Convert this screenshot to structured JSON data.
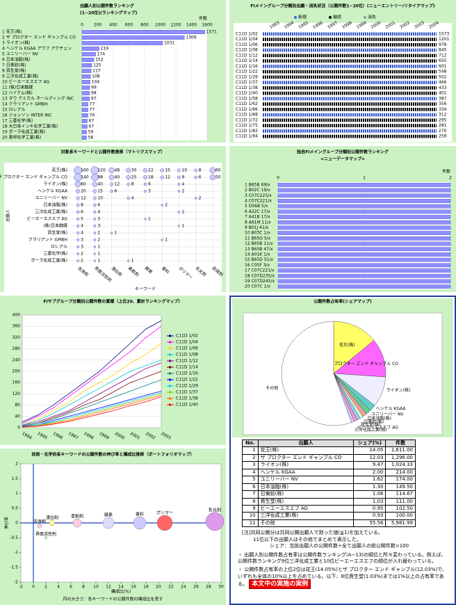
{
  "chart_data": [
    {
      "type": "hbar",
      "title": "出願人別公開件数ランキング",
      "subtitle": "(1−20位)(ランキングマップ)",
      "unit": "件数",
      "show_values": true,
      "color": "#8f8fff",
      "categories": [
        "1 花王(株)",
        "2 ザ プロクター エンド ギャンブル CO",
        "3 ライオン(株)",
        "4 ヘンケル KGAA アウフ アクチェン",
        "5 ユニリーバー NV",
        "6 日本油脂(株)",
        "7 日東紡(株)",
        "8 資生堂(株)",
        "9 三洋化成工業(株)",
        "10 ビーエーエスエフ AG",
        "11 (株)日本触媒",
        "12 ハイケム(株)",
        "13 ダウ ケミカル ホールディング INC",
        "14 クラリアント GMBH",
        "15 ロレアル",
        "16 ジョンソン INTER INC",
        "17 三菱化学(株)",
        "18 大日本インキ化学工業(株)",
        "19 ポーラ化成工業(株)",
        "20 東邦化学工業(株)"
      ],
      "values": [
        1571,
        1309,
        1031,
        219,
        174,
        152,
        125,
        117,
        108,
        104,
        99,
        98,
        97,
        77,
        77,
        76,
        67,
        67,
        59,
        58
      ],
      "xlim": [
        0,
        1600
      ],
      "xticks": [
        0,
        200,
        400,
        600,
        800,
        1000,
        1200,
        1400,
        1600
      ]
    },
    {
      "type": "entrymap",
      "title": "FIメイングループ分類別出願・消失状況（公開件数1−20位）(ニューエントリー/リタイアマップ)",
      "legend": [
        "新規",
        "継続",
        "消失"
      ],
      "legend_colors": [
        "#3366ff",
        "#000000",
        "#999999"
      ],
      "x": [
        "1993",
        "1994",
        "1995",
        "1996",
        "1997",
        "1998",
        "1999",
        "2000",
        "2001",
        "2002",
        "2003",
        "2004"
      ],
      "categories": [
        "C11D 1/02",
        "C11D 1/04",
        "C11D 1/06",
        "C11D 1/08",
        "C11D 1/12",
        "C11D 1/14",
        "C11D 1/16",
        "C11D 1/22",
        "C11D 1/29",
        "C11D 1/37",
        "C11D 1/38",
        "C11D 1/40",
        "C11D 1/58",
        "C11D 1/62",
        "C11D 1/66",
        "C11D 1/68",
        "C11D 1/72",
        "C11D 1/75",
        "C11D 1/83",
        "C11D 1/94"
      ],
      "values": [
        1573,
        1201,
        978,
        845,
        712,
        655,
        601,
        548,
        502,
        466,
        433,
        401,
        387,
        356,
        334,
        312,
        295,
        281,
        270,
        259
      ]
    },
    {
      "type": "bubblematrix",
      "title": "対象系キーワードと公開件数推移（マトリクスマップ）",
      "xlabel": "キーワード",
      "ylabel": "出願人",
      "color": "#ccccff",
      "columns": [
        "洗浄剤",
        "界面活性剤",
        "漂白剤",
        "柔軟剤",
        "酵素",
        "香料",
        "ポリマー",
        "乳化剤",
        "防腐剤"
      ],
      "categories": [
        "花王(株)",
        "ザ プロクター エンド ギャンブル CO",
        "ライオン(株)",
        "ヘンケル KGAA",
        "ユニリーバー NV",
        "日本油脂(株)",
        "三洋化成工業(株)",
        "ビーエーエスエフ AG",
        "(株)日本触媒",
        "資生堂(株)",
        "クラリアント GMBH",
        "ロレアル",
        "三菱化学(株)",
        "ポーラ化成工業(株)"
      ],
      "values": [
        [
          160,
          120,
          48,
          30,
          22,
          15,
          10,
          8,
          60
        ],
        [
          140,
          98,
          40,
          25,
          18,
          12,
          9,
          6,
          50
        ],
        [
          60,
          40,
          12,
          8,
          6,
          0,
          4,
          0,
          0
        ],
        [
          20,
          15,
          6,
          0,
          3,
          0,
          2,
          0,
          0
        ],
        [
          12,
          10,
          0,
          4,
          0,
          0,
          0,
          2,
          0
        ],
        [
          8,
          6,
          0,
          0,
          0,
          2,
          0,
          0,
          0
        ],
        [
          6,
          4,
          0,
          0,
          0,
          0,
          2,
          0,
          0
        ],
        [
          5,
          3,
          0,
          0,
          1,
          0,
          0,
          0,
          0
        ],
        [
          4,
          3,
          0,
          0,
          0,
          0,
          1,
          0,
          0
        ],
        [
          4,
          2,
          1,
          0,
          0,
          0,
          0,
          0,
          0
        ],
        [
          3,
          2,
          0,
          0,
          0,
          1,
          0,
          0,
          0
        ],
        [
          3,
          1,
          0,
          0,
          0,
          0,
          0,
          0,
          0
        ],
        [
          2,
          1,
          0,
          0,
          0,
          0,
          0,
          0,
          0
        ],
        [
          2,
          1,
          0,
          1,
          0,
          0,
          0,
          0,
          0
        ]
      ]
    },
    {
      "type": "hbar",
      "title": "独自FIメイングループ分類別公開件数ランキング",
      "subtitle": "<ニューデータマップ>",
      "unit": "件数",
      "show_values": false,
      "color": "#8f8fff",
      "categories": [
        "1 B65B 69/x",
        "2 B02C 19/x",
        "3 C07C225/x",
        "4 C07C221/x",
        "5 D06B 5/x",
        "6 A22C 17/x",
        "7 A41B 17/x",
        "8 A61M 11/x",
        "9 B01J 41/x",
        "10 B03C 1/x",
        "11 B65G 5/x",
        "12 B65B 11/x",
        "13 B65B 47/x",
        "14 A01K 1/x",
        "15 B65D 51/x",
        "16 C05F 3/x",
        "17 C07C221/x",
        "18 C07D235/x",
        "19 C07D245/x",
        "20 C07C 1/x"
      ],
      "values": [
        2,
        2,
        2,
        2,
        2,
        2,
        2,
        2,
        2,
        2,
        2,
        2,
        2,
        2,
        2,
        2,
        2,
        2,
        2,
        2
      ],
      "xlim": [
        0,
        2
      ],
      "xticks": [
        0,
        1,
        2
      ]
    },
    {
      "type": "line",
      "title": "FIサブグループ分類別公開件数の累積（上位20、累計ランキングマップ）",
      "x": [
        "1994",
        "1995",
        "1996",
        "1997",
        "1998",
        "1999",
        "2000",
        "2001",
        "2002",
        "2003"
      ],
      "ylim": [
        0,
        400
      ],
      "yticks": [
        0,
        40,
        80,
        120,
        160,
        200,
        240,
        280,
        320,
        360,
        400
      ],
      "series": [
        {
          "name": "C11D 1/02",
          "color": "#000080",
          "values": [
            20,
            45,
            80,
            120,
            160,
            200,
            250,
            300,
            350,
            380
          ]
        },
        {
          "name": "C11D 1/04",
          "color": "#ff00ff",
          "values": [
            15,
            40,
            70,
            110,
            150,
            190,
            230,
            270,
            320,
            360
          ]
        },
        {
          "name": "C11D 1/06",
          "color": "#ffcc00",
          "values": [
            10,
            30,
            60,
            90,
            130,
            160,
            190,
            230,
            260,
            300
          ]
        },
        {
          "name": "C11D 1/08",
          "color": "#00cccc",
          "values": [
            10,
            25,
            50,
            80,
            110,
            140,
            170,
            200,
            220,
            240
          ]
        },
        {
          "name": "C11D 1/12",
          "color": "#800080",
          "values": [
            8,
            20,
            40,
            60,
            90,
            120,
            150,
            180,
            210,
            230
          ]
        },
        {
          "name": "C11D 1/14",
          "color": "#800000",
          "values": [
            5,
            15,
            35,
            55,
            80,
            100,
            130,
            160,
            180,
            200
          ]
        },
        {
          "name": "C11D 1/16",
          "color": "#008080",
          "values": [
            5,
            15,
            30,
            50,
            70,
            90,
            110,
            130,
            150,
            170
          ]
        },
        {
          "name": "C11D 1/22",
          "color": "#0000ff",
          "values": [
            5,
            10,
            25,
            40,
            55,
            70,
            85,
            100,
            115,
            130
          ]
        },
        {
          "name": "C11D 1/29",
          "color": "#00ccff",
          "values": [
            3,
            10,
            20,
            35,
            50,
            65,
            80,
            95,
            110,
            125
          ]
        },
        {
          "name": "C11D 1/37",
          "color": "#99cc00",
          "values": [
            3,
            8,
            18,
            30,
            45,
            60,
            75,
            90,
            105,
            120
          ]
        },
        {
          "name": "C11D 1/38",
          "color": "#ff6600",
          "values": [
            2,
            6,
            15,
            25,
            40,
            55,
            70,
            85,
            100,
            115
          ]
        },
        {
          "name": "C11D 1/40",
          "color": "#ff0000",
          "values": [
            2,
            5,
            12,
            22,
            35,
            48,
            62,
            78,
            92,
            110
          ]
        }
      ]
    },
    {
      "type": "bubble",
      "title": "技術・化学的系キーワードの公開件数の伸び率と構成比推移（ポートフォリオマップ）",
      "xlabel": "構成比(%)",
      "ylabel": "伸び率",
      "note": "円の大きさ：各キーワードの公開件数の構成比を表す",
      "names": [
        "洗浄剤",
        "界面活性剤",
        "漂白剤",
        "柔軟剤",
        "酵素",
        "香料",
        "ポリマー",
        "乳化剤"
      ],
      "x": [
        1,
        2,
        3,
        7,
        12,
        17,
        21,
        29
      ],
      "values": [
        -0.1,
        -0.5,
        0,
        0,
        0,
        0,
        0,
        0.05
      ],
      "sizes": [
        3,
        2,
        4,
        6,
        8,
        9,
        11,
        13
      ],
      "colors": [
        "#ffccee",
        "#ccffcc",
        "#ffff99",
        "#ffccdd",
        "#ddddff",
        "#ccccff",
        "#ff6666",
        "#dd99ee"
      ],
      "xlim": [
        -2,
        30
      ],
      "xticks": [
        -2,
        0,
        2,
        4,
        6,
        8,
        10,
        12,
        14,
        16,
        18,
        20,
        22,
        24,
        26,
        28,
        30
      ],
      "ylim": [
        -2,
        2
      ],
      "yticks": [
        -2,
        -1.5,
        -1,
        -0.5,
        0,
        0.5,
        1,
        1.5,
        2
      ]
    },
    {
      "type": "pie",
      "title": "公開件数占有率(シェアマップ)",
      "categories": [
        "花王(株)",
        "ザ プロクター エンド ギャンブル CO",
        "ライオン(株)",
        "ヘンケル KGAA",
        "ユニリーバー NV",
        "日本油脂(株)",
        "日東紡(株)",
        "資生堂(株)",
        "ビーエーエスエフ AG",
        "三洋化成工業(株)",
        "その他"
      ],
      "values": [
        14.05,
        12.03,
        9.47,
        2.0,
        1.62,
        1.3,
        1.06,
        1.03,
        0.95,
        0.93,
        55.56
      ],
      "value_labels": [
        "14.05",
        "12.03",
        "9.47",
        "2.00",
        "1.62",
        "1.30",
        "1.06",
        "1.03",
        "0.95",
        "0.93",
        "55.56"
      ],
      "colors": [
        "#ffff66",
        "#ff66ff",
        "#eeeeff",
        "#66cccc",
        "#66cc99",
        "#ff9999",
        "#ccffcc",
        "#99ccff",
        "#ff99cc",
        "#ccccff",
        "#ffffff"
      ],
      "numbers": [
        1,
        2,
        3,
        4,
        5,
        6,
        7,
        8,
        9,
        10,
        11
      ],
      "counts": [
        "1,611.00",
        "1,296.00",
        "1,024.33",
        "214.00",
        "174.00",
        "149.50",
        "114.67",
        "111.00",
        "102.50",
        "100.00",
        "5,981.99"
      ],
      "table_header": [
        "No.",
        "出願人",
        "シェア(%)",
        "件数"
      ]
    }
  ],
  "notes": {
    "lines": [
      "[注]共同公開分は共同公開出願人で割った値(≦1)を加えている。",
      "11位以下の出願人はその他でまとめて表示した。",
      "シェア：当該出願人の公開件数÷全て出願人の総公開件数×100"
    ],
    "bullets": [
      "・ 出願人別公開件数占有率は公開件数ランキング(A−13)の順位と所々変わっている。例えば、公開件数ランキング9位三洋化成工業と10位ビーエーエスエフの順位が入れ替わっている。",
      "・ 公開件数占有率の上位2位は花王(14.05%)とザ プロクター エンド ギャンブル(12.03%)で、いずれも全体の10%以上を占めている。以下、8位資生堂(1.03%)までは1%以上の占有率である。"
    ],
    "stamp": "本文中の実施の実例"
  }
}
